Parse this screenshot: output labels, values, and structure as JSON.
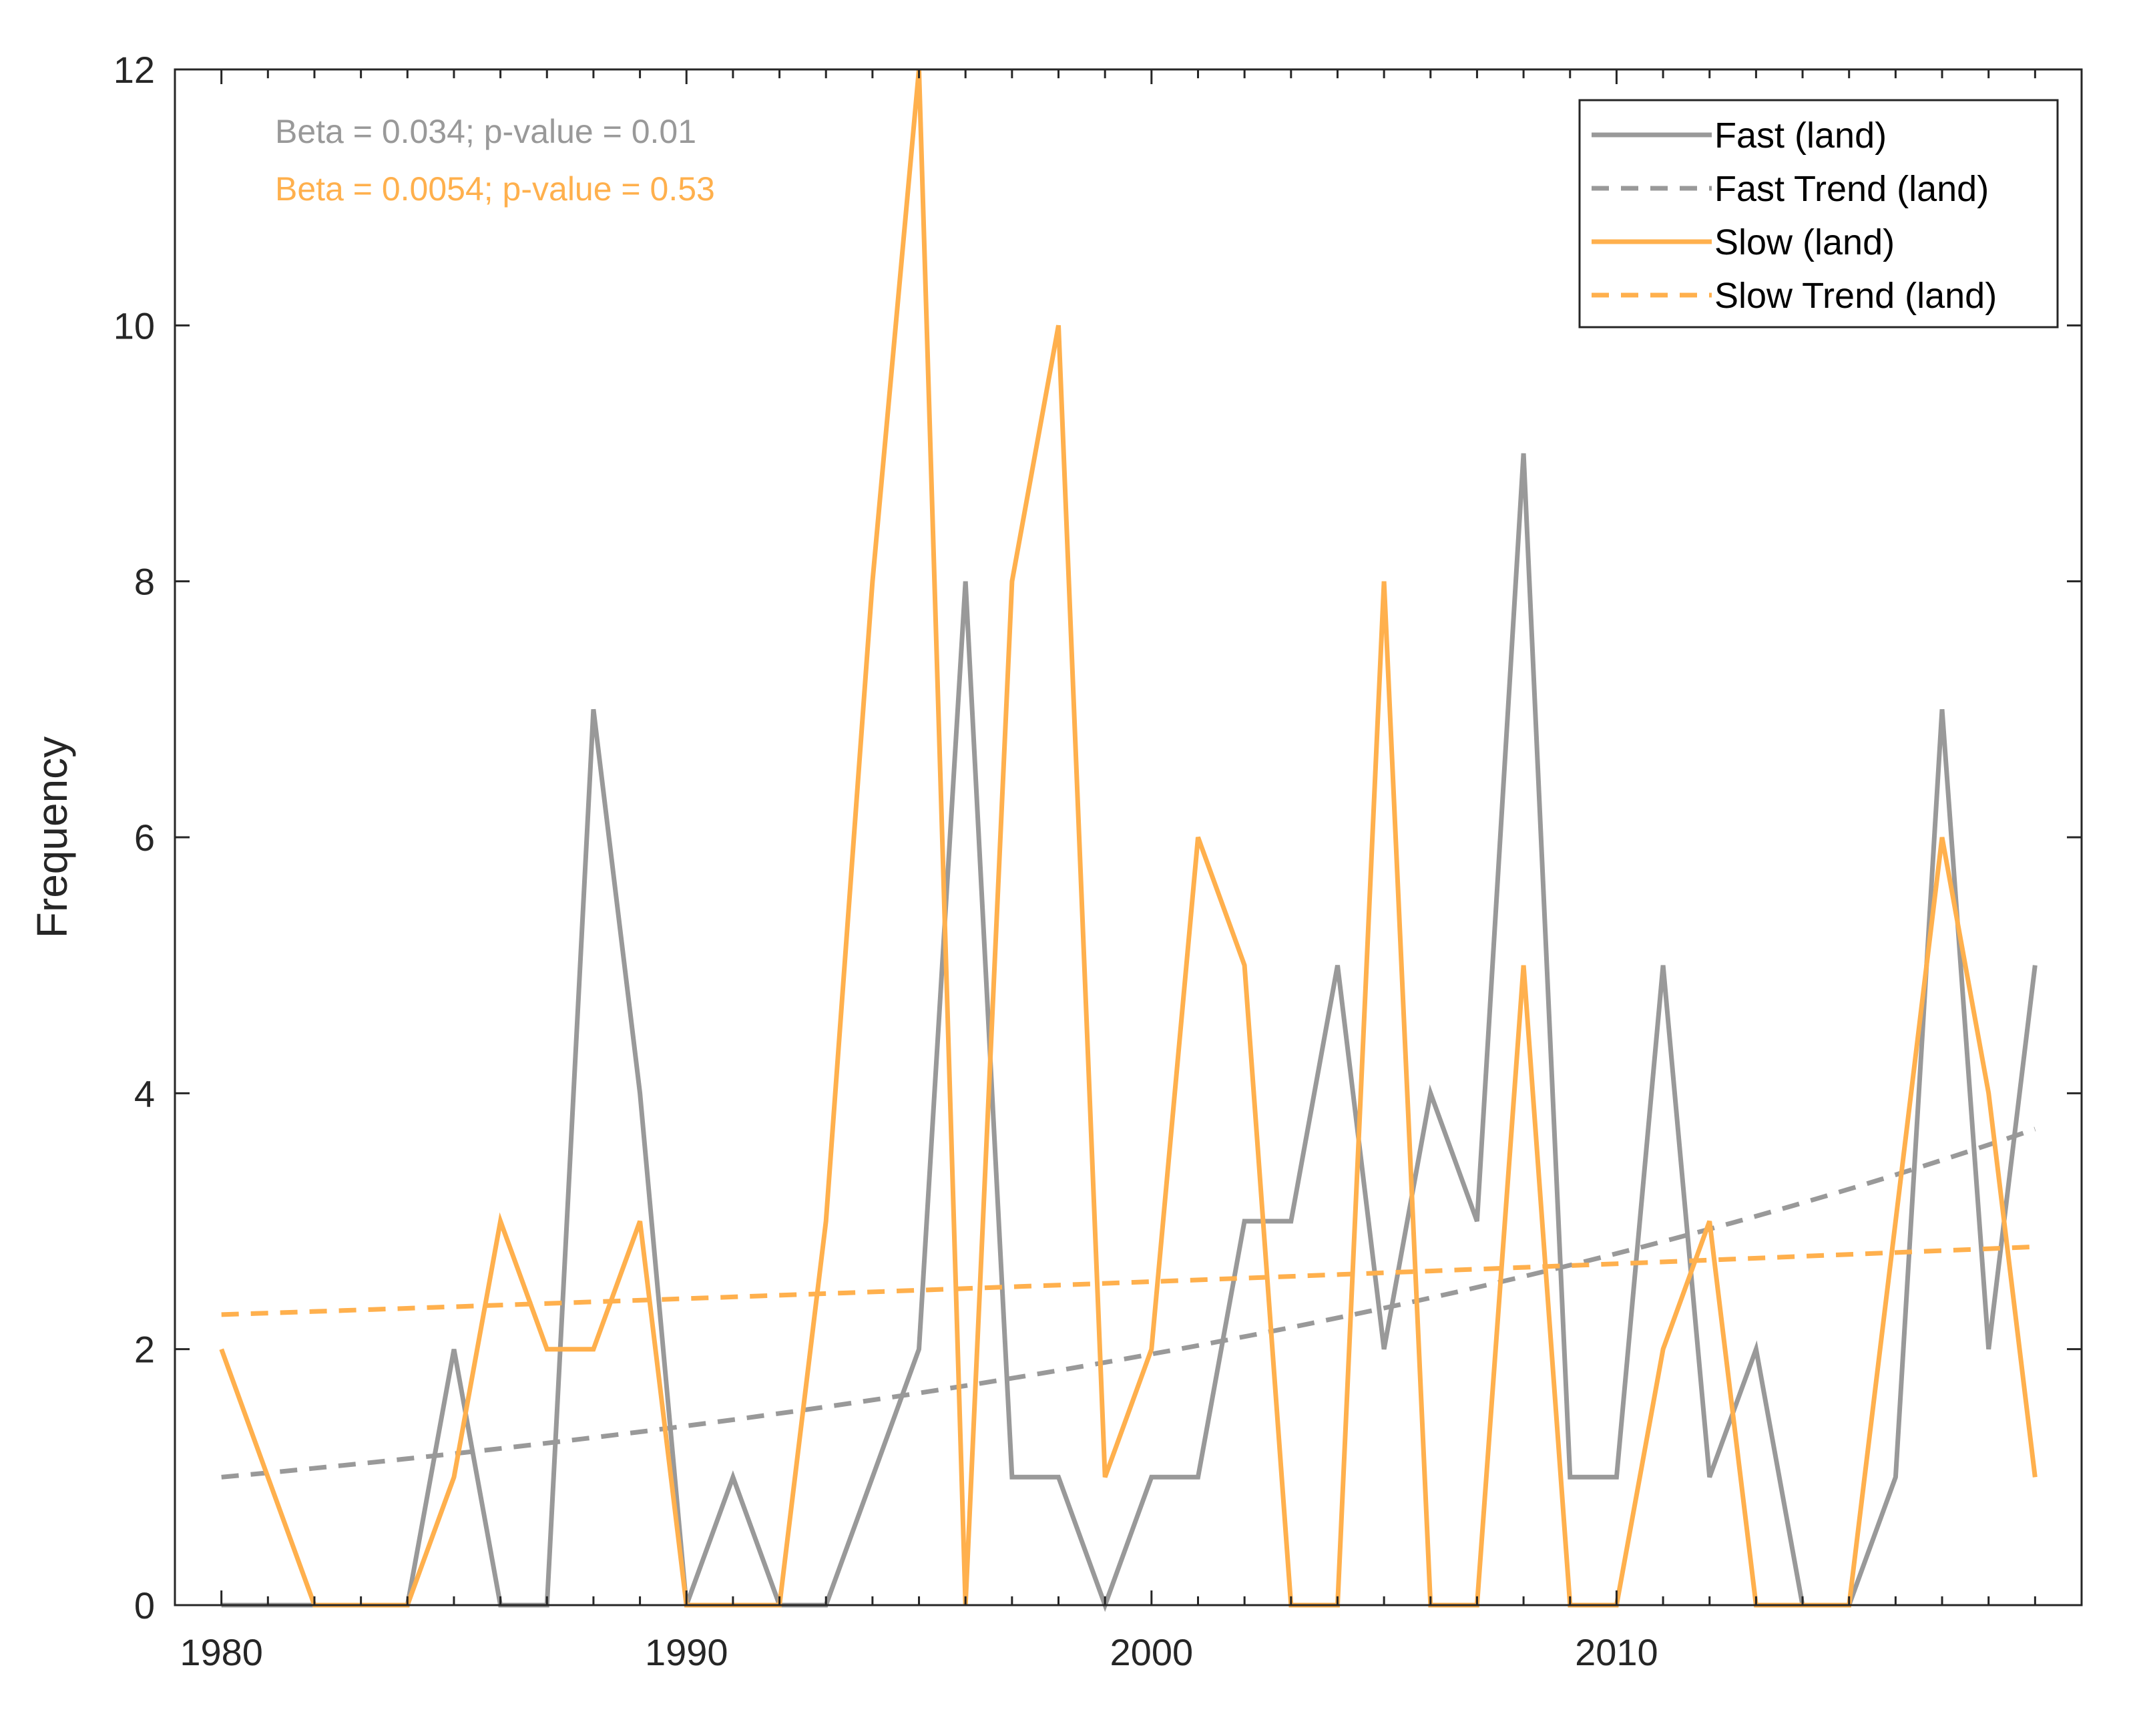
{
  "chart_data": {
    "type": "line",
    "title": "",
    "xlabel": "",
    "ylabel": "Frequency",
    "xlim": [
      1979,
      2020
    ],
    "ylim": [
      0,
      12
    ],
    "xticks": [
      1980,
      1990,
      2000,
      2010
    ],
    "yticks": [
      0,
      2,
      4,
      6,
      8,
      10,
      12
    ],
    "grid": false,
    "legend_position": "top-right",
    "x": [
      1980,
      1981,
      1982,
      1983,
      1984,
      1985,
      1986,
      1987,
      1988,
      1989,
      1990,
      1991,
      1992,
      1993,
      1994,
      1995,
      1996,
      1997,
      1998,
      1999,
      2000,
      2001,
      2002,
      2003,
      2004,
      2005,
      2006,
      2007,
      2008,
      2009,
      2010,
      2011,
      2012,
      2013,
      2014,
      2015,
      2016,
      2017,
      2018,
      2019
    ],
    "series": [
      {
        "name": "Fast (land)",
        "style": "solid",
        "color": "#999999",
        "values": [
          0,
          0,
          0,
          0,
          0,
          2,
          0,
          0,
          7,
          4,
          0,
          1,
          0,
          0,
          1,
          2,
          8,
          1,
          1,
          0,
          1,
          1,
          3,
          3,
          5,
          2,
          4,
          3,
          9,
          1,
          1,
          5,
          1,
          2,
          0,
          0,
          1,
          7,
          2,
          5
        ]
      },
      {
        "name": "Fast Trend (land)",
        "style": "dashed",
        "color": "#999999",
        "start": [
          1980,
          1.0
        ],
        "end": [
          2019,
          3.72
        ],
        "growth": "exponential"
      },
      {
        "name": "Slow (land)",
        "style": "solid",
        "color": "#ffb04d",
        "values": [
          2,
          1,
          0,
          0,
          0,
          1,
          3,
          2,
          2,
          3,
          0,
          0,
          0,
          3,
          8,
          12,
          0,
          8,
          10,
          1,
          2,
          6,
          5,
          0,
          0,
          8,
          0,
          0,
          5,
          0,
          0,
          2,
          3,
          0,
          0,
          0,
          3,
          6,
          4,
          1
        ]
      },
      {
        "name": "Slow Trend (land)",
        "style": "dashed",
        "color": "#ffb04d",
        "start": [
          1980,
          2.27
        ],
        "end": [
          2019,
          2.8
        ],
        "growth": "exponential"
      }
    ],
    "annotations": [
      {
        "text": "Beta = 0.034; p-value = 0.01",
        "color": "#999999"
      },
      {
        "text": "Beta = 0.0054; p-value = 0.53",
        "color": "#ffb04d"
      }
    ]
  }
}
